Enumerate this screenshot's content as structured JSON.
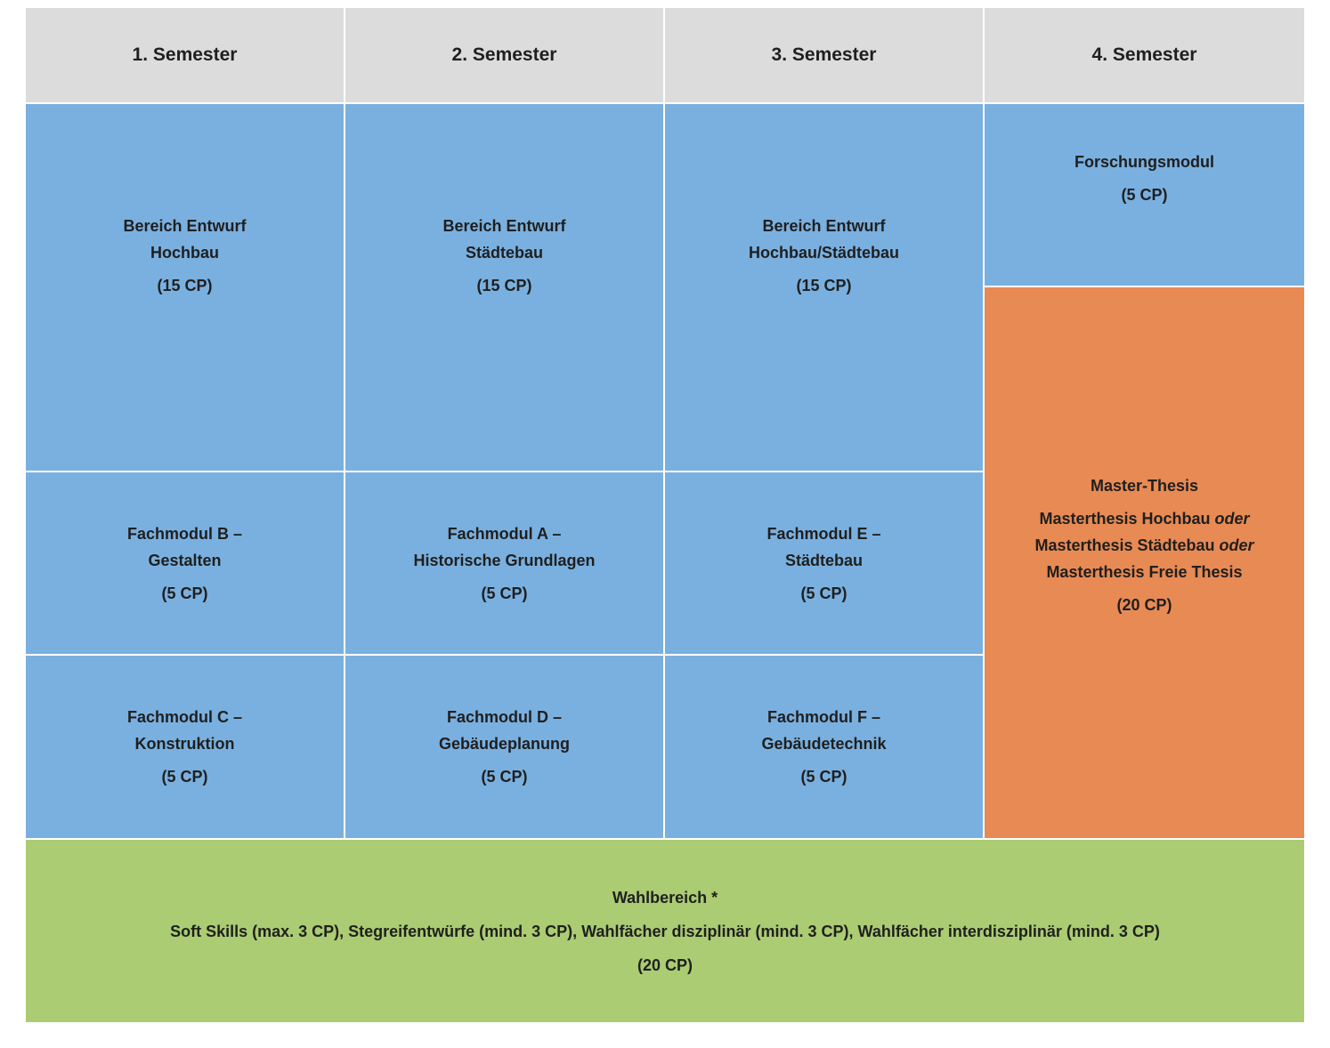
{
  "semesters": [
    {
      "label": "1. Semester"
    },
    {
      "label": "2. Semester"
    },
    {
      "label": "3. Semester"
    },
    {
      "label": "4. Semester"
    }
  ],
  "modules": {
    "entwurf_1": {
      "line1": "Bereich Entwurf",
      "line2": "Hochbau",
      "cp": "(15 CP)"
    },
    "entwurf_2": {
      "line1": "Bereich Entwurf",
      "line2": "Städtebau",
      "cp": "(15 CP)"
    },
    "entwurf_3": {
      "line1": "Bereich Entwurf",
      "line2": "Hochbau/Städtebau",
      "cp": "(15 CP)"
    },
    "forschung": {
      "line1": "Forschungsmodul",
      "cp": "(5 CP)"
    },
    "fach_b": {
      "line1": "Fachmodul B –",
      "line2": "Gestalten",
      "cp": "(5 CP)"
    },
    "fach_a": {
      "line1": "Fachmodul A –",
      "line2": "Historische Grundlagen",
      "cp": "(5 CP)"
    },
    "fach_e": {
      "line1": "Fachmodul E –",
      "line2": "Städtebau",
      "cp": "(5 CP)"
    },
    "fach_c": {
      "line1": "Fachmodul C –",
      "line2": "Konstruktion",
      "cp": "(5 CP)"
    },
    "fach_d": {
      "line1": "Fachmodul D –",
      "line2": "Gebäudeplanung",
      "cp": "(5 CP)"
    },
    "fach_f": {
      "line1": "Fachmodul F –",
      "line2": "Gebäudetechnik",
      "cp": "(5 CP)"
    }
  },
  "thesis": {
    "title": "Master-Thesis",
    "option1": "Masterthesis Hochbau",
    "option2": "Masterthesis Städtebau",
    "option3": "Masterthesis Freie Thesis",
    "connector": "oder",
    "cp": "(20 CP)"
  },
  "wahlbereich": {
    "title": "Wahlbereich *",
    "description": "Soft Skills (max. 3 CP), Stegreifentwürfe (mind. 3 CP), Wahlfächer disziplinär (mind. 3 CP), Wahlfächer interdisziplinär (mind. 3 CP)",
    "cp": "(20 CP)"
  },
  "colors": {
    "header": "#dcdcdc",
    "module": "#7ab0df",
    "thesis": "#e88a54",
    "elective": "#abcc72"
  }
}
